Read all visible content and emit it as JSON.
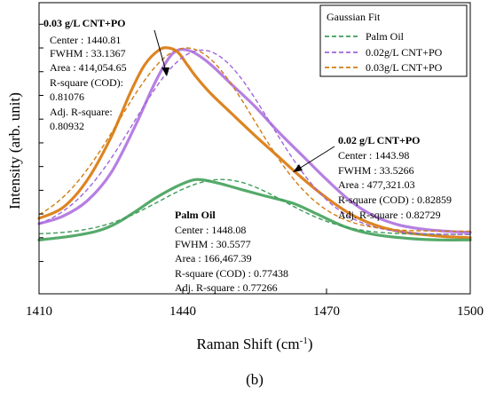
{
  "chart_data": {
    "type": "line",
    "xlabel": "Raman Shift (cm",
    "xlabel_sup": "-1",
    "xlabel_close": ")",
    "ylabel": "Intensity (arb. unit)",
    "xlim": [
      1410,
      1500
    ],
    "x_ticks": [
      "1410",
      "1440",
      "1470",
      "1500"
    ],
    "caption": "(b)",
    "legend": {
      "title": "Gaussian Fit",
      "position": "top-right",
      "entries": [
        "Palm Oil",
        "0.02g/L CNT+PO",
        "0.03g/L CNT+PO"
      ]
    },
    "colors": {
      "palm_oil": "#55aa6a",
      "cnt002": "#b67fe2",
      "cnt003": "#dd8422",
      "palm_oil_fit": "#3c9d5a",
      "cnt002_fit": "#a066dd",
      "cnt003_fit": "#d17d12"
    },
    "series": [
      {
        "key": "palm_oil",
        "x": [
          1410,
          1416,
          1422,
          1426,
          1430,
          1434,
          1438,
          1441,
          1443,
          1445,
          1448,
          1452,
          1457,
          1463,
          1468,
          1474,
          1480,
          1488,
          1494,
          1500
        ],
        "y": [
          0.0,
          0.03,
          0.08,
          0.15,
          0.26,
          0.38,
          0.48,
          0.54,
          0.56,
          0.55,
          0.52,
          0.47,
          0.41,
          0.34,
          0.24,
          0.12,
          0.05,
          0.01,
          0.0,
          0.0
        ]
      },
      {
        "key": "cnt002",
        "x": [
          1410,
          1415,
          1420,
          1425,
          1430,
          1434,
          1437,
          1439,
          1441,
          1443,
          1446,
          1450,
          1455,
          1460,
          1465,
          1470,
          1475,
          1480,
          1485,
          1490,
          1495,
          1500
        ],
        "y": [
          0.15,
          0.22,
          0.36,
          0.62,
          1.05,
          1.44,
          1.68,
          1.76,
          1.76,
          1.72,
          1.62,
          1.45,
          1.24,
          1.0,
          0.78,
          0.56,
          0.36,
          0.22,
          0.14,
          0.1,
          0.08,
          0.07
        ]
      },
      {
        "key": "cnt003",
        "x": [
          1410,
          1415,
          1420,
          1425,
          1429,
          1432,
          1435,
          1437,
          1439,
          1441,
          1443,
          1446,
          1450,
          1455,
          1460,
          1465,
          1470,
          1475,
          1480,
          1485,
          1490,
          1495,
          1500
        ],
        "y": [
          0.2,
          0.3,
          0.55,
          0.95,
          1.36,
          1.62,
          1.76,
          1.78,
          1.74,
          1.62,
          1.5,
          1.35,
          1.18,
          0.97,
          0.77,
          0.57,
          0.39,
          0.24,
          0.14,
          0.08,
          0.05,
          0.03,
          0.02
        ]
      }
    ],
    "fits": [
      {
        "key": "palm_oil_fit",
        "center": 1448.08,
        "fwhm": 30.5577,
        "area": 166467.39,
        "baseline": 0.05
      },
      {
        "key": "cnt002_fit",
        "center": 1443.98,
        "fwhm": 33.5266,
        "area": 477321.03,
        "baseline": 0.05
      },
      {
        "key": "cnt003_fit",
        "center": 1440.81,
        "fwhm": 33.1367,
        "area": 414054.65,
        "baseline": 0.08
      }
    ],
    "annotations": {
      "cnt003": {
        "title": "0.03 g/L CNT+PO",
        "lines": [
          "Center   : 1440.81",
          "FWHM   : 33.1367",
          "Area      : 414,054.65",
          "R-square (COD):",
          "0.81076",
          "Adj. R-square:",
          "0.80932"
        ]
      },
      "cnt002": {
        "title": "0.02 g/L CNT+PO",
        "lines": [
          "Center       :  1443.98",
          "FWHM       :  33.5266",
          "Area          :  477,321.03",
          "R-square (COD)  :  0.82859",
          "Adj. R-square      :  0.82729"
        ]
      },
      "palm_oil": {
        "title": "Palm Oil",
        "lines": [
          "Center       :  1448.08",
          "FWHM        : 30.5577",
          "Area           : 166,467.39",
          "R-square (COD)  :  0.77438",
          "Adj. R-square      :  0.77266"
        ]
      }
    }
  }
}
